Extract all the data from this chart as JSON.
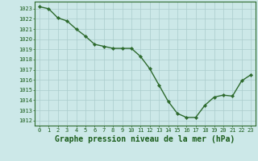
{
  "x": [
    0,
    1,
    2,
    3,
    4,
    5,
    6,
    7,
    8,
    9,
    10,
    11,
    12,
    13,
    14,
    15,
    16,
    17,
    18,
    19,
    20,
    21,
    22,
    23
  ],
  "y": [
    1023.2,
    1023.0,
    1022.1,
    1021.8,
    1021.0,
    1020.3,
    1019.5,
    1019.3,
    1019.1,
    1019.1,
    1019.1,
    1018.3,
    1017.1,
    1015.5,
    1013.9,
    1012.7,
    1012.3,
    1012.3,
    1013.5,
    1014.3,
    1014.5,
    1014.4,
    1015.9,
    1016.5
  ],
  "line_color": "#2d6a2d",
  "marker": "D",
  "marker_size": 2.2,
  "line_width": 1.0,
  "bg_color": "#cce8e8",
  "grid_color": "#aacccc",
  "title": "Graphe pression niveau de la mer (hPa)",
  "ylim": [
    1011.5,
    1023.7
  ],
  "xlim": [
    -0.5,
    23.5
  ],
  "yticks": [
    1012,
    1013,
    1014,
    1015,
    1016,
    1017,
    1018,
    1019,
    1020,
    1021,
    1022,
    1023
  ],
  "xticks": [
    0,
    1,
    2,
    3,
    4,
    5,
    6,
    7,
    8,
    9,
    10,
    11,
    12,
    13,
    14,
    15,
    16,
    17,
    18,
    19,
    20,
    21,
    22,
    23
  ],
  "tick_fontsize": 5.0,
  "title_fontsize": 7.0,
  "tick_color": "#1a5c1a",
  "spine_color": "#2d6a2d"
}
